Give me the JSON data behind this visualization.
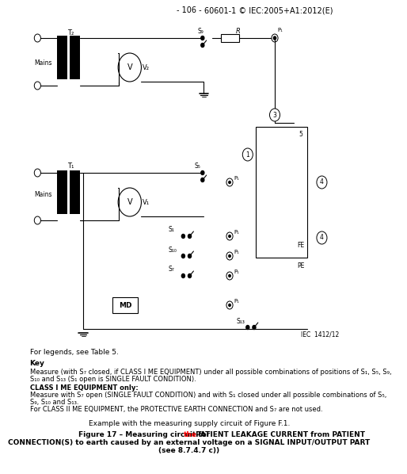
{
  "page_number": "- 106 -",
  "standard": "60601-1 © IEC:2005+A1:2012(E)",
  "iec_ref": "IEC  1412/12",
  "fig_caption_normal": "Example with the measuring supply circuit of Figure F.1.",
  "fig_number": "Figure 17 – Measuring circuit for ",
  "fig_the": "the",
  "fig_rest": " PATIENT LEAKAGE CURRENT from PATIENT",
  "fig_line2": "CONNECTION(S) to earth caused by an external voltage on a SIGNAL INPUT/OUTPUT PART",
  "fig_line3": "(see 8.7.4.7 c))",
  "legend_title": "For legends, see Table 5.",
  "key_title": "Key",
  "key_line1": "Measure (with S₇ closed, if CLASS I ME EQUIPMENT) under all possible combinations of positions of S₁, S₅, S₉,",
  "key_line2": "S₁₀ and S₁₃ (S₁ open is SINGLE FAULT CONDITION).",
  "key_class1_title": "CLASS I ME EQUIPMENT only:",
  "key_class1_line1": "Measure with S₇ open (SINGLE FAULT CONDITION) and with S₁ closed under all possible combinations of S₅,",
  "key_class1_line2": "S₉, S₁₀ and S₁₃.",
  "key_class2": "For CLASS II ME EQUIPMENT, the PROTECTIVE EARTH CONNECTION and S₇ are not used.",
  "bg_color": "#ffffff"
}
